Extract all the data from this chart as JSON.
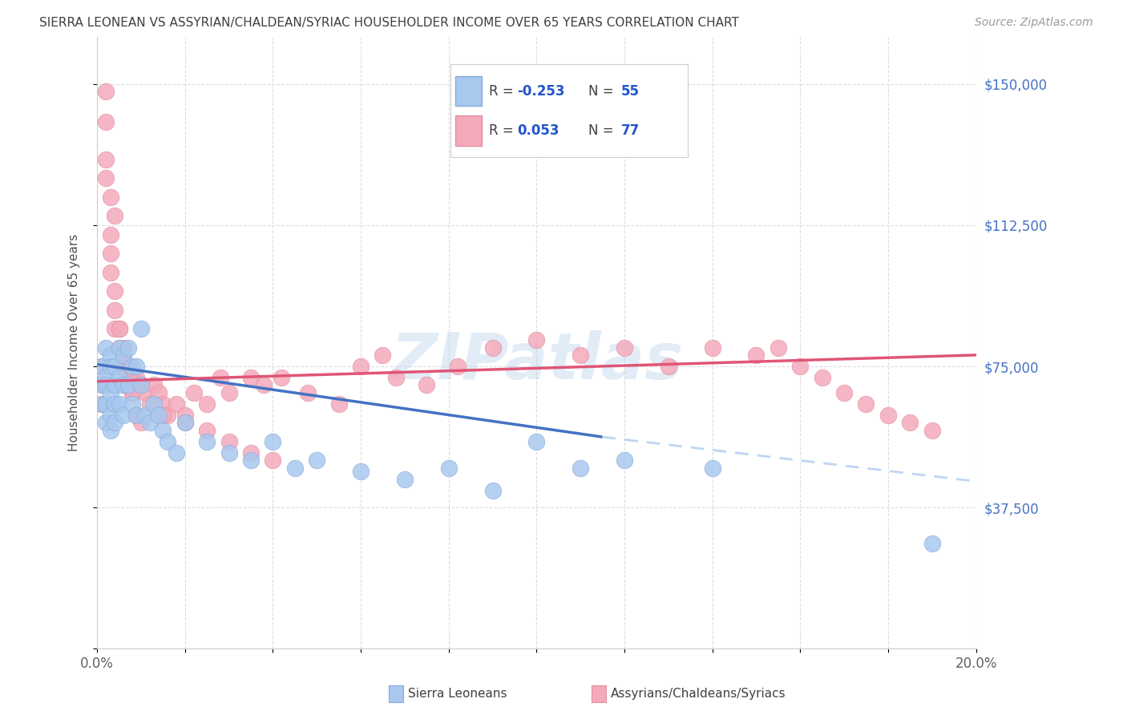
{
  "title": "SIERRA LEONEAN VS ASSYRIAN/CHALDEAN/SYRIAC HOUSEHOLDER INCOME OVER 65 YEARS CORRELATION CHART",
  "source": "Source: ZipAtlas.com",
  "ylabel": "Householder Income Over 65 years",
  "xlim": [
    0.0,
    0.2
  ],
  "ylim": [
    0,
    162500
  ],
  "ytick_vals": [
    0,
    37500,
    75000,
    112500,
    150000
  ],
  "ytick_labels_right": [
    "",
    "$37,500",
    "$75,000",
    "$112,500",
    "$150,000"
  ],
  "xtick_vals": [
    0.0,
    0.02,
    0.04,
    0.06,
    0.08,
    0.1,
    0.12,
    0.14,
    0.16,
    0.18,
    0.2
  ],
  "xtick_labels": [
    "0.0%",
    "",
    "",
    "",
    "",
    "",
    "",
    "",
    "",
    "",
    "20.0%"
  ],
  "watermark": "ZIPatlas",
  "color_blue": "#A8C8EE",
  "color_blue_edge": "#88AADD",
  "color_pink": "#F4AABB",
  "color_pink_edge": "#E090A0",
  "color_blue_line": "#4472C4",
  "color_pink_line": "#E05575",
  "color_ytick_label": "#4472C4",
  "color_xtick_label": "#606060",
  "grid_color": "#DDDDDD",
  "background": "#FFFFFF",
  "sierra_x": [
    0.001,
    0.001,
    0.001,
    0.002,
    0.002,
    0.002,
    0.002,
    0.002,
    0.003,
    0.003,
    0.003,
    0.003,
    0.003,
    0.004,
    0.004,
    0.004,
    0.004,
    0.005,
    0.005,
    0.005,
    0.006,
    0.006,
    0.006,
    0.007,
    0.007,
    0.008,
    0.008,
    0.009,
    0.009,
    0.01,
    0.01,
    0.011,
    0.012,
    0.013,
    0.014,
    0.015,
    0.016,
    0.018,
    0.02,
    0.025,
    0.03,
    0.035,
    0.04,
    0.045,
    0.05,
    0.06,
    0.07,
    0.08,
    0.09,
    0.1,
    0.11,
    0.12,
    0.14,
    0.19
  ],
  "sierra_y": [
    75000,
    70000,
    65000,
    80000,
    72000,
    70000,
    65000,
    60000,
    78000,
    75000,
    68000,
    62000,
    58000,
    75000,
    70000,
    65000,
    60000,
    80000,
    72000,
    65000,
    78000,
    70000,
    62000,
    80000,
    70000,
    75000,
    65000,
    75000,
    62000,
    85000,
    70000,
    62000,
    60000,
    65000,
    62000,
    58000,
    55000,
    52000,
    60000,
    55000,
    52000,
    50000,
    55000,
    48000,
    50000,
    47000,
    45000,
    48000,
    42000,
    55000,
    48000,
    50000,
    48000,
    28000
  ],
  "assyrian_x": [
    0.001,
    0.001,
    0.001,
    0.002,
    0.002,
    0.002,
    0.003,
    0.003,
    0.003,
    0.004,
    0.004,
    0.004,
    0.005,
    0.005,
    0.005,
    0.006,
    0.006,
    0.006,
    0.007,
    0.007,
    0.008,
    0.008,
    0.009,
    0.01,
    0.011,
    0.012,
    0.013,
    0.014,
    0.015,
    0.016,
    0.018,
    0.02,
    0.022,
    0.025,
    0.028,
    0.03,
    0.035,
    0.038,
    0.042,
    0.048,
    0.055,
    0.06,
    0.065,
    0.068,
    0.075,
    0.082,
    0.09,
    0.1,
    0.11,
    0.12,
    0.13,
    0.14,
    0.15,
    0.155,
    0.16,
    0.165,
    0.17,
    0.175,
    0.18,
    0.185,
    0.19,
    0.002,
    0.003,
    0.004,
    0.005,
    0.006,
    0.007,
    0.008,
    0.009,
    0.01,
    0.015,
    0.02,
    0.025,
    0.03,
    0.035,
    0.04
  ],
  "assyrian_y": [
    75000,
    70000,
    65000,
    148000,
    140000,
    130000,
    110000,
    105000,
    100000,
    95000,
    90000,
    85000,
    85000,
    80000,
    75000,
    80000,
    75000,
    70000,
    75000,
    70000,
    72000,
    68000,
    72000,
    70000,
    68000,
    65000,
    70000,
    68000,
    65000,
    62000,
    65000,
    62000,
    68000,
    65000,
    72000,
    68000,
    72000,
    70000,
    72000,
    68000,
    65000,
    75000,
    78000,
    72000,
    70000,
    75000,
    80000,
    82000,
    78000,
    80000,
    75000,
    80000,
    78000,
    80000,
    75000,
    72000,
    68000,
    65000,
    62000,
    60000,
    58000,
    125000,
    120000,
    115000,
    85000,
    78000,
    72000,
    68000,
    62000,
    60000,
    62000,
    60000,
    58000,
    55000,
    52000,
    50000
  ],
  "trend_sierra_x0": 0.0,
  "trend_sierra_y0": 75500,
  "trend_sierra_x1": 0.2,
  "trend_sierra_y1": 42000,
  "trend_sierra_solid_end": 0.115,
  "trend_assyrian_x0": 0.0,
  "trend_assyrian_y0": 71000,
  "trend_assyrian_x1": 0.2,
  "trend_assyrian_y1": 78000
}
